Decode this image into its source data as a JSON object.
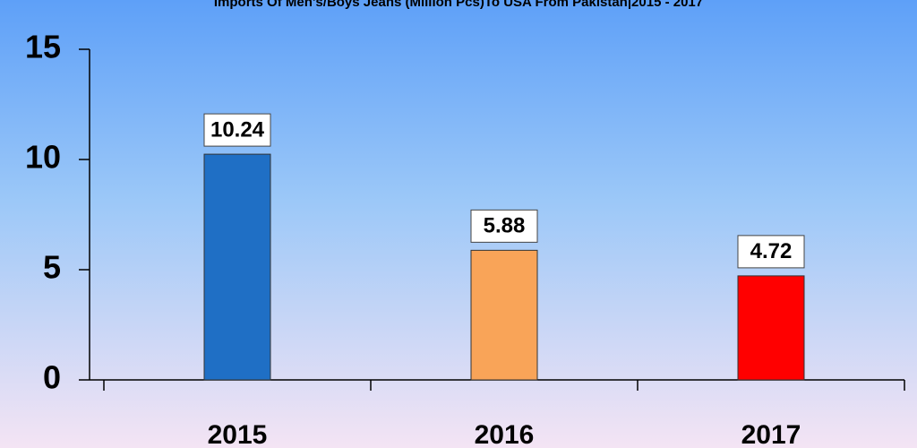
{
  "chart_data": {
    "type": "bar",
    "title": "Imports Of Men's/Boys Jeans (Million Pcs)To USA From Pakistan|2015 - 2017",
    "categories": [
      "2015",
      "2016",
      "2017"
    ],
    "values": [
      10.24,
      5.88,
      4.72
    ],
    "colors": [
      "#1f6fc5",
      "#f9a458",
      "#ff0000"
    ],
    "ylim": [
      0,
      15
    ],
    "yticks": [
      0,
      5,
      10,
      15
    ]
  }
}
